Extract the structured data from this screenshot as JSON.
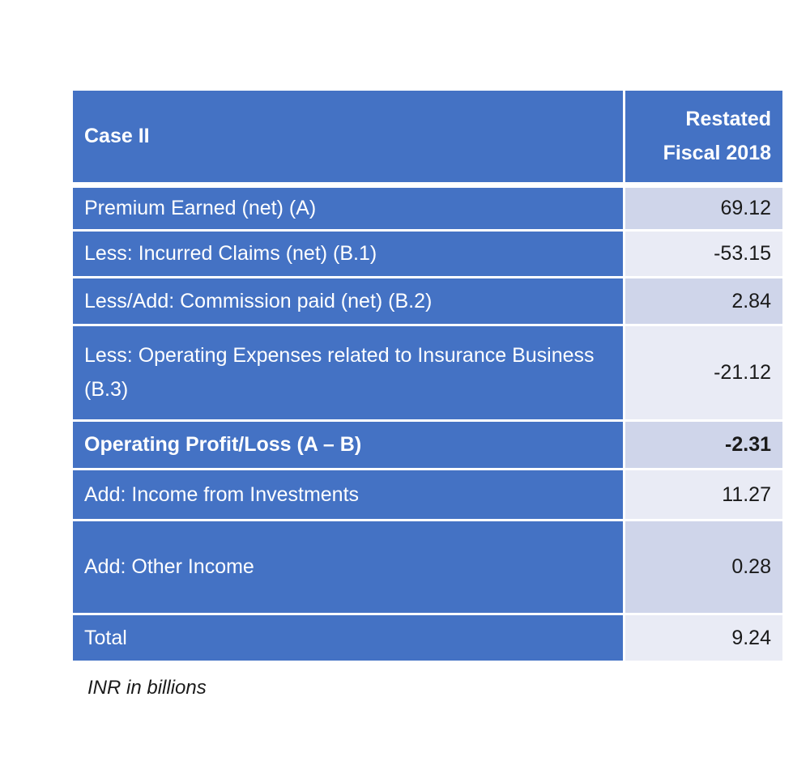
{
  "chart_data": {
    "type": "table",
    "title": "",
    "columns": [
      "Case II",
      "Restated Fiscal 2018"
    ],
    "header": {
      "label": "Case II",
      "value_line1": "Restated",
      "value_line2": "Fiscal 2018"
    },
    "rows": [
      {
        "label": "Premium Earned (net) (A)",
        "value": "69.12",
        "bold": false,
        "height": 56
      },
      {
        "label": "Less: Incurred Claims (net) (B.1)",
        "value": "-53.15",
        "bold": false,
        "height": 58
      },
      {
        "label": "Less/Add: Commission paid (net) (B.2)",
        "value": "2.84",
        "bold": false,
        "height": 59
      },
      {
        "label": "Less: Operating Expenses related to Insurance Business (B.3)",
        "value": "-21.12",
        "bold": false,
        "height": 118
      },
      {
        "label": "Operating Profit/Loss (A – B)",
        "value": "-2.31",
        "bold": true,
        "height": 60
      },
      {
        "label": "Add: Income from Investments",
        "value": "11.27",
        "bold": false,
        "height": 63
      },
      {
        "label": "Add: Other Income",
        "value": "0.28",
        "bold": false,
        "height": 116
      },
      {
        "label": "Total",
        "value": "9.24",
        "bold": false,
        "height": 59
      }
    ],
    "values": [
      69.12,
      -53.15,
      2.84,
      -21.12,
      -2.31,
      11.27,
      0.28,
      9.24
    ],
    "footnote": "INR in billions"
  }
}
